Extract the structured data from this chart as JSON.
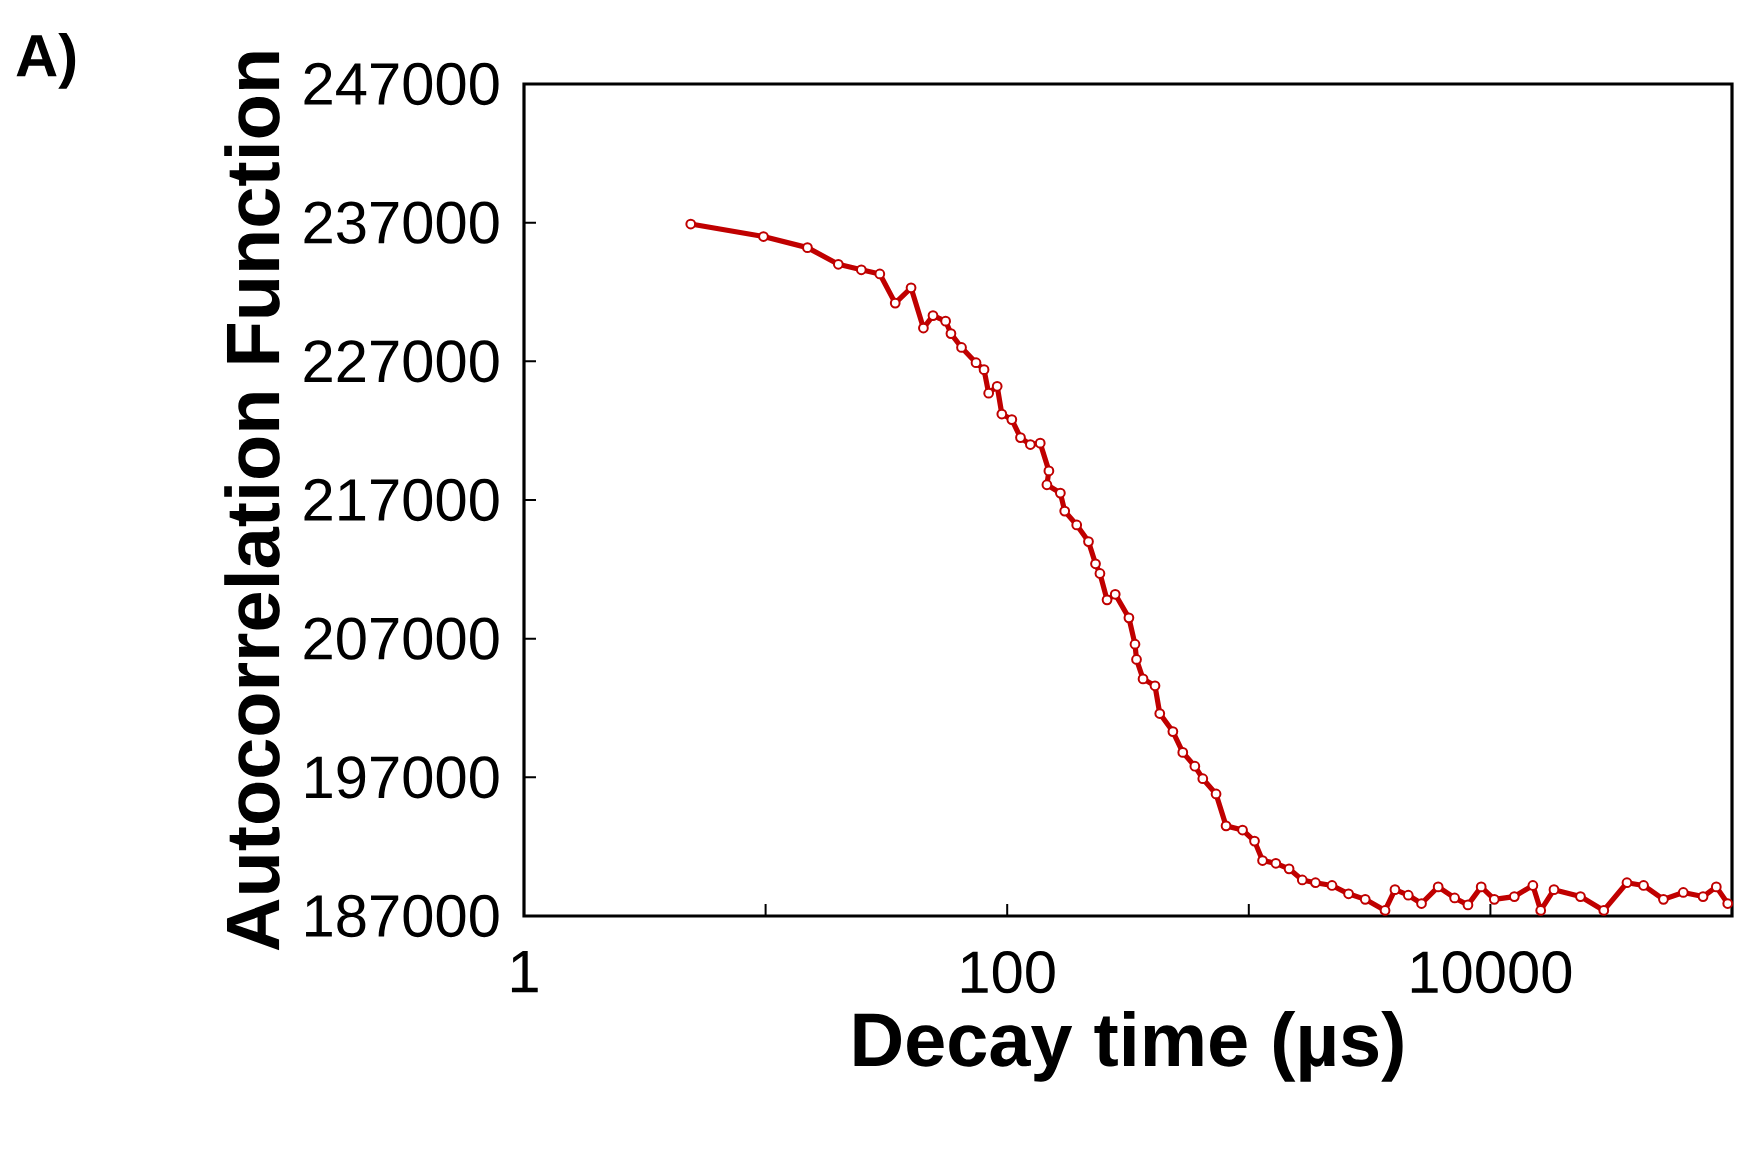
{
  "chart_data": {
    "type": "line",
    "xlabel": "Decay time (µs)",
    "ylabel": "Autocorrelation Function",
    "annotations": [
      "A)"
    ],
    "log": "x",
    "marker": "circle",
    "line_style": "solid",
    "xlim": [
      1,
      100000
    ],
    "xticks": [
      1,
      {
        "value": 10,
        "label": null
      },
      100,
      {
        "value": 1000,
        "label": null
      },
      10000,
      {
        "value": 100000,
        "label": null
      }
    ],
    "ylim": [
      187000,
      247000
    ],
    "yticks": [
      187000,
      197000,
      207000,
      217000,
      227000,
      237000,
      247000
    ],
    "series": [
      {
        "color": "#c00000",
        "x": [
          4.9,
          9.8,
          14.9,
          20,
          24.9,
          29.7,
          34.4,
          40,
          45,
          49.3,
          55.6,
          58.5,
          64.7,
          74.3,
          80.2,
          83.8,
          90.9,
          95,
          104.5,
          113.5,
          124.7,
          137,
          148.8,
          146,
          166,
          173,
          194,
          217,
          232,
          242,
          259,
          280,
          319,
          338,
          343,
          365,
          409,
          428,
          485,
          533,
          598,
          645,
          732,
          805,
          942,
          1056,
          1140,
          1294,
          1468,
          1665,
          1888,
          2210,
          2588,
          3033,
          3664,
          4027,
          4571,
          5186,
          6079,
          7111,
          8073,
          9160,
          10380,
          12560,
          14990,
          16150,
          18330,
          23590,
          29460,
          36750,
          43050,
          52030,
          62860,
          75900,
          86100,
          96000
        ],
        "values": [
          236900,
          236000,
          235200,
          234000,
          233600,
          233300,
          231200,
          232300,
          229400,
          230300,
          229900,
          229000,
          228000,
          226900,
          226400,
          224700,
          225200,
          223200,
          222800,
          221500,
          221000,
          221100,
          219100,
          218100,
          217500,
          216200,
          215200,
          214000,
          212400,
          211700,
          209800,
          210200,
          208500,
          206600,
          205500,
          204100,
          203600,
          201600,
          200300,
          198800,
          197800,
          196900,
          195800,
          193500,
          193200,
          192400,
          191000,
          190800,
          190400,
          189600,
          189400,
          189200,
          188600,
          188200,
          187400,
          188900,
          188500,
          187900,
          189100,
          188300,
          187800,
          189100,
          188200,
          188400,
          189200,
          187400,
          188900,
          188400,
          187400,
          189400,
          189200,
          188200,
          188700,
          188400,
          189100,
          187900
        ]
      }
    ]
  }
}
